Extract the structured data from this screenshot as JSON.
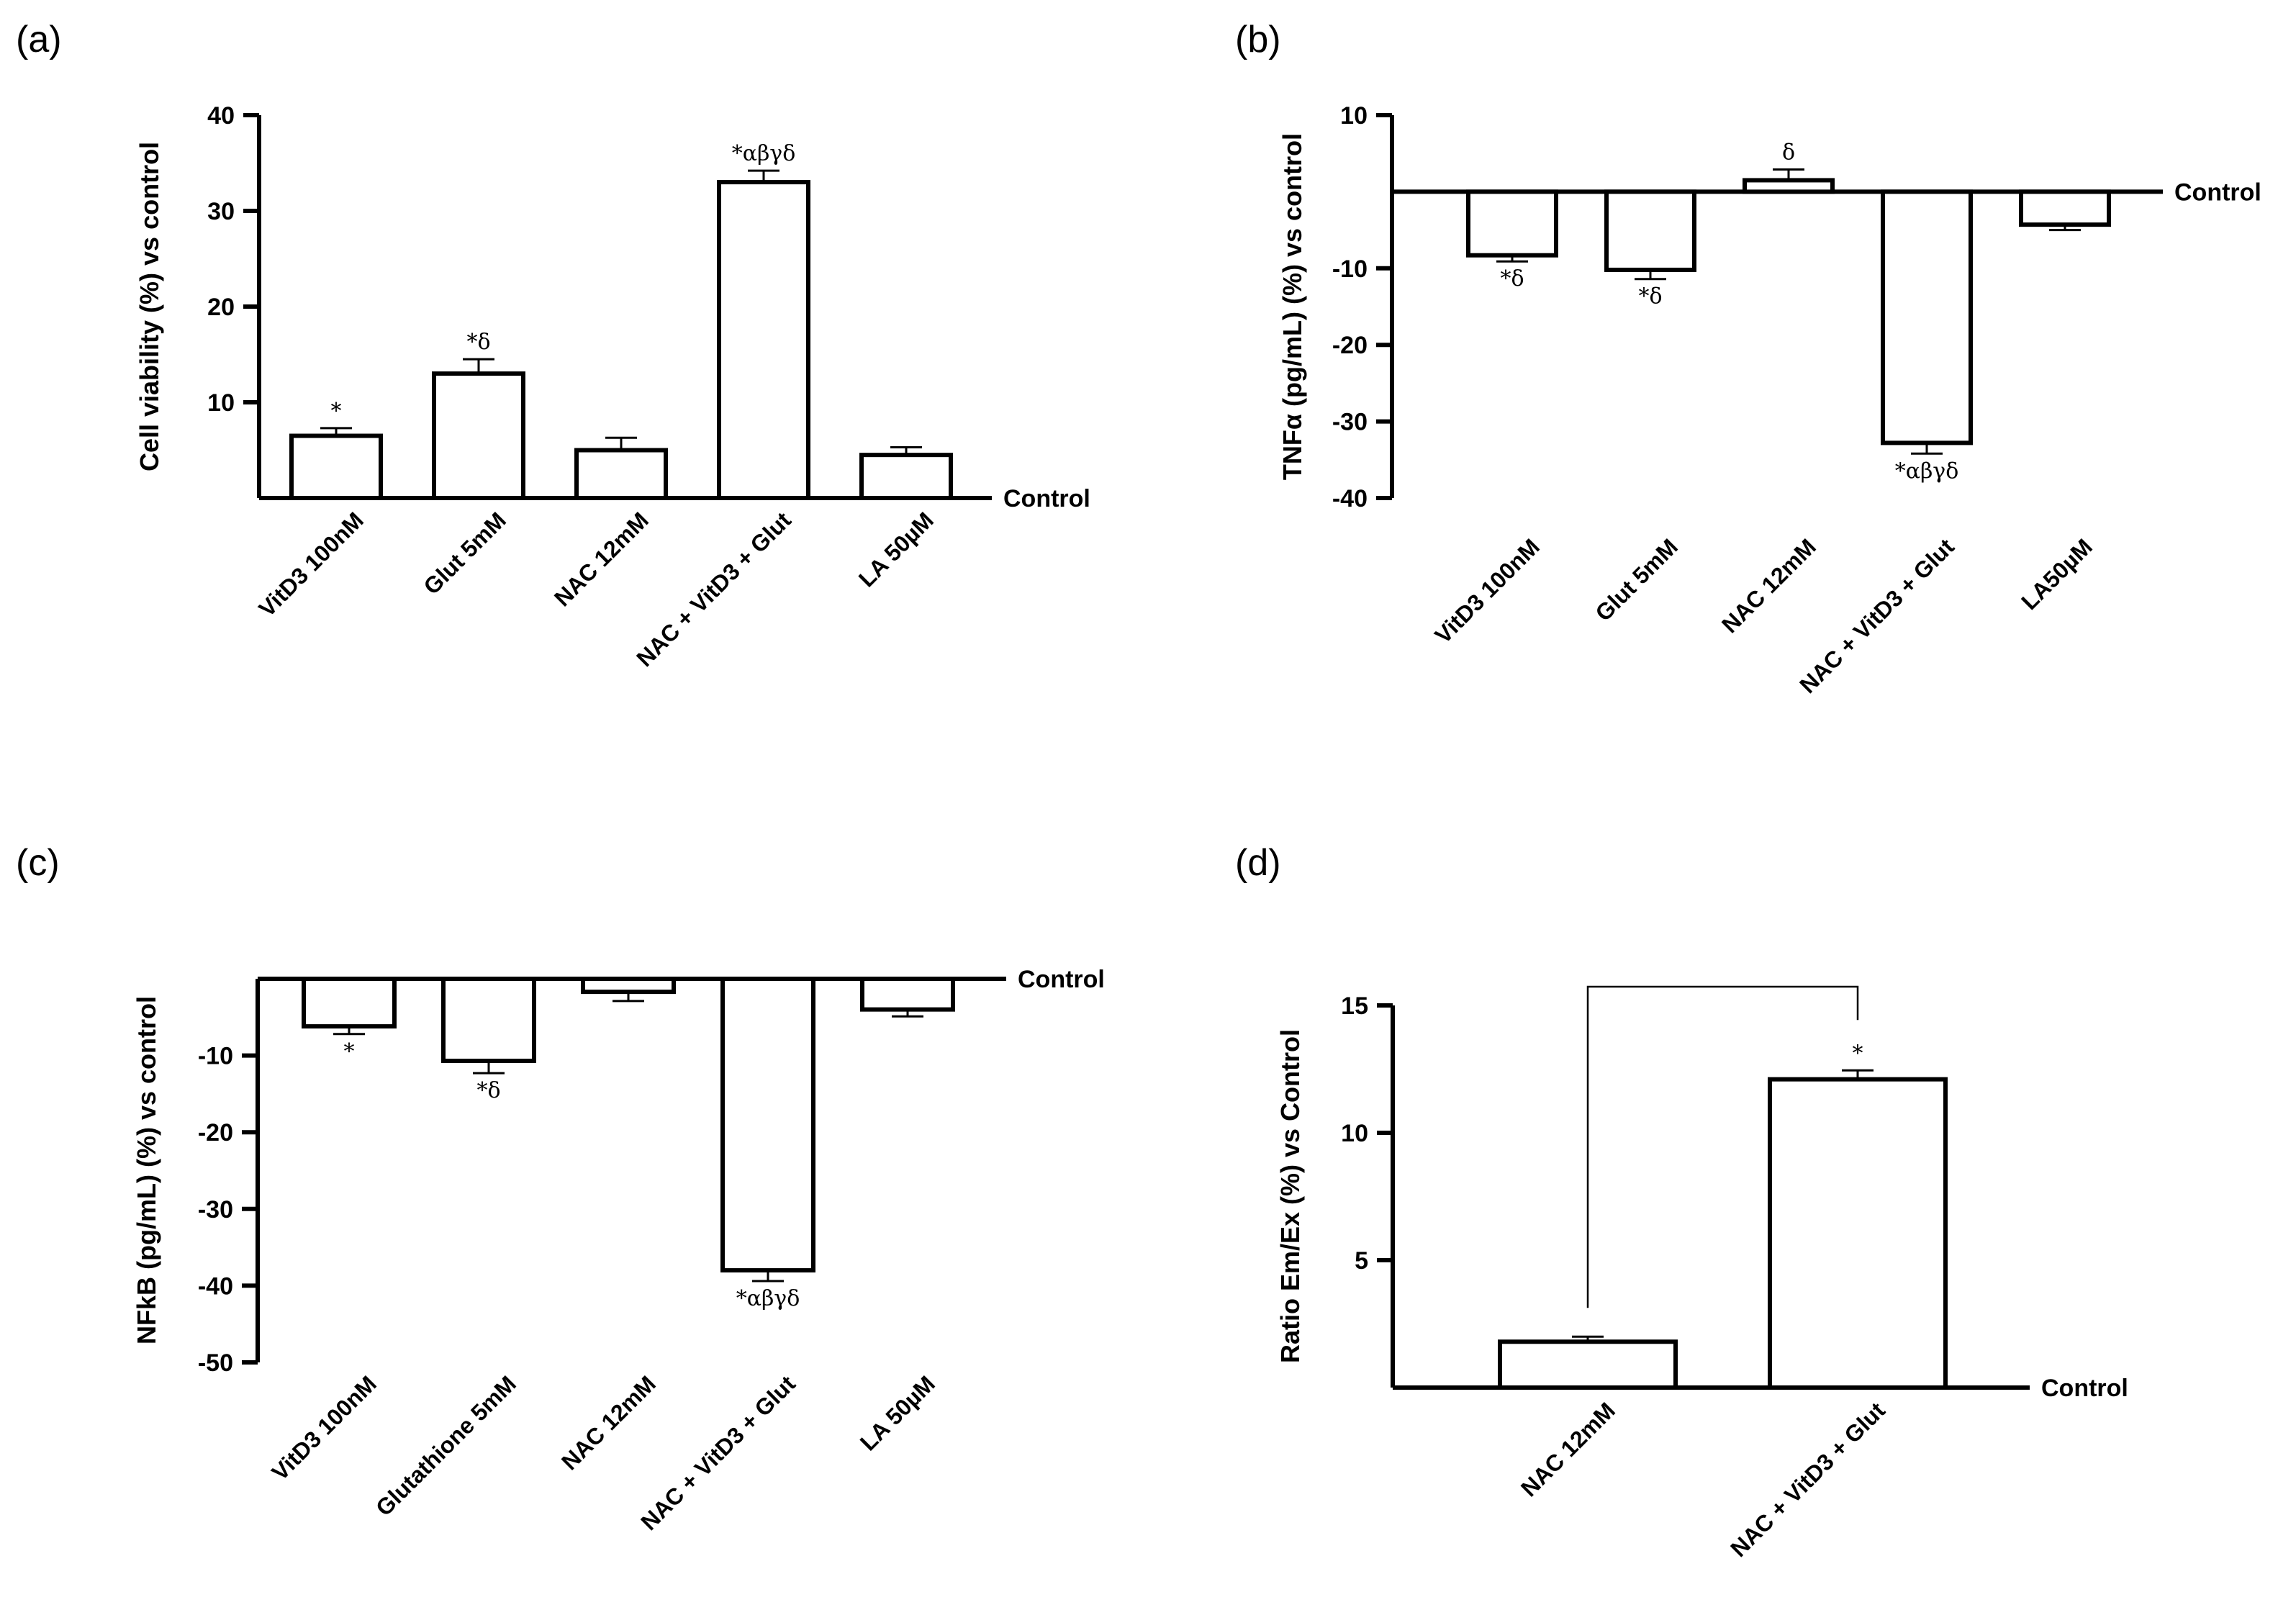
{
  "chart_data": [
    {
      "id": "a",
      "panel_label": "(a)",
      "type": "bar",
      "ylabel": "Cell viability (%) vs control",
      "ylim": [
        0,
        40
      ],
      "yticks": [
        10,
        20,
        30,
        40
      ],
      "ytick_labels": [
        "10",
        "20",
        "30",
        "40"
      ],
      "baseline_label": "Control",
      "categories": [
        "VitD3 100nM",
        "Glut 5mM",
        "NAC 12mM",
        "NAC + VitD3 + Glut",
        "LA 50µM"
      ],
      "values": [
        6.5,
        13,
        5,
        33,
        4.5
      ],
      "errors": [
        0.8,
        1.5,
        1.3,
        1.2,
        0.8
      ],
      "annotations": [
        "*",
        "*δ",
        "",
        "*αβγδ",
        ""
      ]
    },
    {
      "id": "b",
      "panel_label": "(b)",
      "type": "bar",
      "ylabel": "TNFα (pg/mL) (%) vs control",
      "ylim": [
        -40,
        10
      ],
      "yticks": [
        10,
        -10,
        -20,
        -30,
        -40
      ],
      "ytick_labels": [
        "10",
        "-10",
        "-20",
        "-30",
        "-40"
      ],
      "baseline_label": "Control",
      "categories": [
        "VitD3 100nM",
        "Glut 5mM",
        "NAC 12mM",
        "NAC + VitD3 + Glut",
        "LA50µM"
      ],
      "values": [
        -8.3,
        -10.2,
        1.5,
        -32.8,
        -4.3
      ],
      "errors": [
        0.8,
        1.2,
        1.4,
        1.4,
        0.7
      ],
      "annotations": [
        "*δ",
        "*δ",
        "δ",
        "*αβγδ",
        ""
      ]
    },
    {
      "id": "c",
      "panel_label": "(c)",
      "type": "bar",
      "ylabel": "NFkB (pg/mL) (%) vs control",
      "ylim": [
        -50,
        0
      ],
      "yticks": [
        -10,
        -20,
        -30,
        -40,
        -50
      ],
      "ytick_labels": [
        "-10",
        "-20",
        "-30",
        "-40",
        "-50"
      ],
      "baseline_label": "Control",
      "categories": [
        "VitD3 100nM",
        "Glutathione 5mM",
        "NAC 12mM",
        "NAC + VitD3 + Glut",
        "LA 50µM"
      ],
      "values": [
        -6.2,
        -10.7,
        -1.7,
        -38,
        -4
      ],
      "errors": [
        1,
        1.6,
        1.2,
        1.4,
        0.9
      ],
      "annotations": [
        "*",
        "*δ",
        "",
        "*αβγδ",
        ""
      ]
    },
    {
      "id": "d",
      "panel_label": "(d)",
      "type": "bar",
      "ylabel": "Ratio Em/Ex (%) vs Control",
      "ylim": [
        0,
        15
      ],
      "yticks": [
        5,
        10,
        15
      ],
      "ytick_labels": [
        "5",
        "10",
        "15"
      ],
      "baseline_label": "Control",
      "categories": [
        "NAC 12mM",
        "NAC + VitD3 + Glut"
      ],
      "values": [
        1.8,
        12.1
      ],
      "errors": [
        0.2,
        0.35
      ],
      "annotations": [
        "",
        "*"
      ],
      "comparison": {
        "from": 0,
        "to": 1,
        "label": ""
      }
    }
  ]
}
